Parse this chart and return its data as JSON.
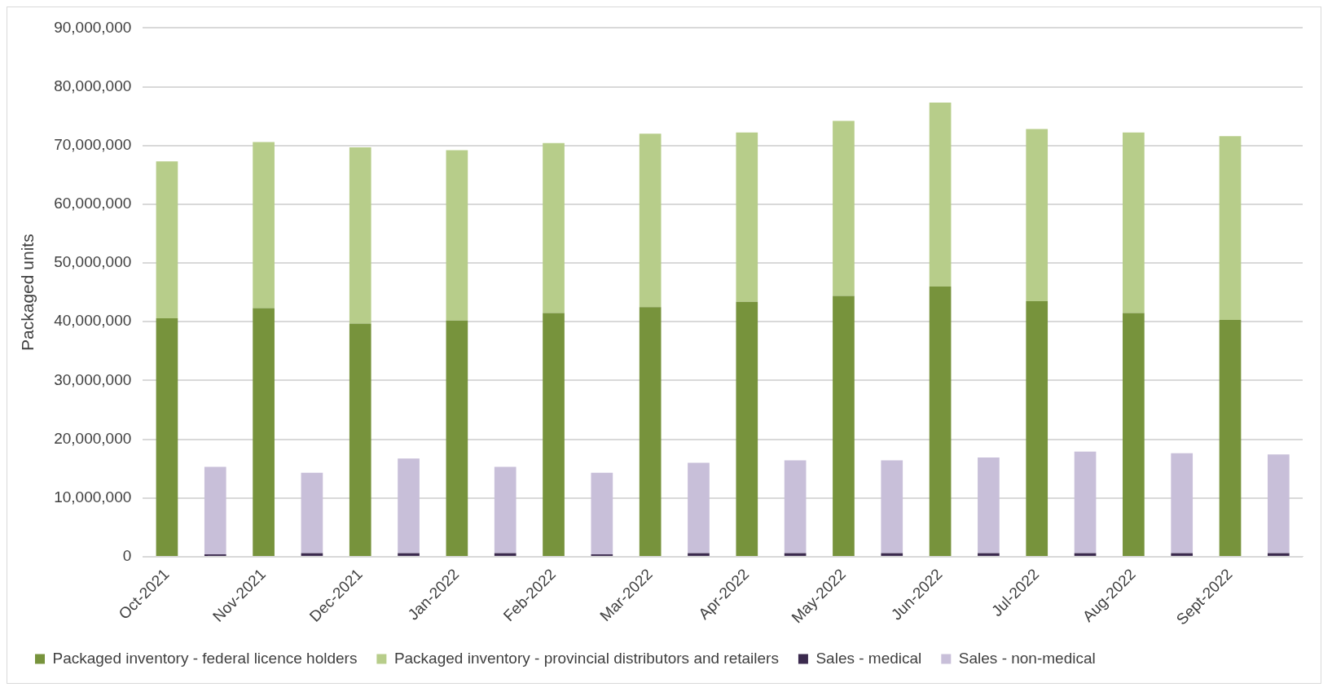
{
  "chart_data": {
    "type": "bar",
    "stacked": true,
    "ylabel": "Packaged units",
    "categories": [
      "Oct-2021",
      null,
      "Nov-2021",
      null,
      "Dec-2021",
      null,
      "Jan-2022",
      null,
      "Feb-2022",
      null,
      "Mar-2022",
      null,
      "Apr-2022",
      null,
      "May-2022",
      null,
      "Jun-2022",
      null,
      "Jul-2022",
      null,
      "Aug-2022",
      null,
      "Sept-2022",
      null
    ],
    "series": [
      {
        "name": "Packaged inventory - federal licence holders",
        "color": "#77933c",
        "values": [
          40600000,
          null,
          42300000,
          null,
          39700000,
          null,
          40200000,
          null,
          41500000,
          null,
          42500000,
          null,
          43400000,
          null,
          44400000,
          null,
          46000000,
          null,
          43500000,
          null,
          41500000,
          null,
          40300000,
          null
        ]
      },
      {
        "name": "Packaged inventory - provincial distributors and retailers",
        "color": "#b7cd8a",
        "values": [
          26700000,
          null,
          28300000,
          null,
          30000000,
          null,
          29000000,
          null,
          28900000,
          null,
          29500000,
          null,
          28800000,
          null,
          29800000,
          null,
          31300000,
          null,
          29300000,
          null,
          30700000,
          null,
          31300000,
          null
        ]
      },
      {
        "name": "Sales - medical",
        "color": "#3b2a4e",
        "values": [
          null,
          400000,
          null,
          600000,
          null,
          600000,
          null,
          600000,
          null,
          400000,
          null,
          600000,
          null,
          600000,
          null,
          600000,
          null,
          600000,
          null,
          600000,
          null,
          600000,
          null,
          600000
        ]
      },
      {
        "name": "Sales - non-medical",
        "color": "#c8bfd9",
        "values": [
          null,
          14900000,
          null,
          13700000,
          null,
          16100000,
          null,
          14700000,
          null,
          13900000,
          null,
          15400000,
          null,
          15800000,
          null,
          15800000,
          null,
          16300000,
          null,
          17300000,
          null,
          17000000,
          null,
          16800000
        ]
      }
    ],
    "ylim": [
      0,
      90000000
    ],
    "yticks": [
      0,
      {
        "value": 10000000,
        "label": "10,000,000"
      },
      {
        "value": 20000000,
        "label": "20,000,000"
      },
      {
        "value": 30000000,
        "label": "30,000,000"
      },
      {
        "value": 40000000,
        "label": "40,000,000"
      },
      {
        "value": 50000000,
        "label": "50,000,000"
      },
      {
        "value": 60000000,
        "label": "60,000,000"
      },
      {
        "value": 70000000,
        "label": "70,000,000"
      },
      {
        "value": 80000000,
        "label": "80,000,000"
      },
      {
        "value": 90000000,
        "label": "90,000,000"
      }
    ],
    "grid": "y",
    "legend": "bottom"
  }
}
